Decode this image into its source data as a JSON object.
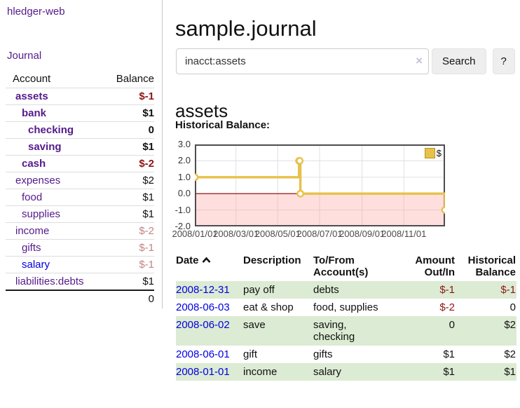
{
  "app": {
    "brand": "hledger-web"
  },
  "sidebar": {
    "journal_link": "Journal",
    "accounts": {
      "header_account": "Account",
      "header_balance": "Balance",
      "rows": [
        {
          "name": "assets",
          "depth": 1,
          "bold": true,
          "blue": false,
          "balance": "$-1",
          "balance_style": "neg-strong"
        },
        {
          "name": "bank",
          "depth": 2,
          "bold": true,
          "blue": false,
          "balance": "$1",
          "balance_style": "pos"
        },
        {
          "name": "checking",
          "depth": 3,
          "bold": true,
          "blue": false,
          "balance": "0",
          "balance_style": "pos"
        },
        {
          "name": "saving",
          "depth": 3,
          "bold": true,
          "blue": false,
          "balance": "$1",
          "balance_style": "pos"
        },
        {
          "name": "cash",
          "depth": 2,
          "bold": true,
          "blue": false,
          "balance": "$-2",
          "balance_style": "neg-strong"
        },
        {
          "name": "expenses",
          "depth": 1,
          "bold": false,
          "blue": false,
          "balance": "$2",
          "balance_style": "pos"
        },
        {
          "name": "food",
          "depth": 2,
          "bold": false,
          "blue": false,
          "balance": "$1",
          "balance_style": "pos"
        },
        {
          "name": "supplies",
          "depth": 2,
          "bold": false,
          "blue": false,
          "balance": "$1",
          "balance_style": "pos"
        },
        {
          "name": "income",
          "depth": 1,
          "bold": false,
          "blue": false,
          "balance": "$-2",
          "balance_style": "neg-muted"
        },
        {
          "name": "gifts",
          "depth": 2,
          "bold": false,
          "blue": false,
          "balance": "$-1",
          "balance_style": "neg-muted"
        },
        {
          "name": "salary",
          "depth": 2,
          "bold": false,
          "blue": true,
          "balance": "$-1",
          "balance_style": "neg-muted"
        },
        {
          "name": "liabilities:debts",
          "depth": 1,
          "bold": false,
          "blue": false,
          "balance": "$1",
          "balance_style": "pos"
        }
      ],
      "total": "0"
    }
  },
  "main": {
    "title": "sample.journal",
    "search": {
      "value": "inacct:assets",
      "clear_icon": "×",
      "search_button": "Search",
      "help_button": "?"
    },
    "heading": "assets",
    "chart_title": "Historical Balance:"
  },
  "chart_data": {
    "type": "line",
    "step": true,
    "title": "Historical Balance",
    "series": [
      {
        "name": "$",
        "color": "#e8c14a",
        "points": [
          [
            "2008-01-01",
            1
          ],
          [
            "2008-06-01",
            2
          ],
          [
            "2008-06-02",
            2
          ],
          [
            "2008-06-03",
            0
          ],
          [
            "2008-12-31",
            -1
          ]
        ]
      }
    ],
    "xlim": [
      "2008-01-01",
      "2008-12-31"
    ],
    "ylim": [
      -2,
      3
    ],
    "yticks": [
      3,
      2,
      1,
      0,
      -1,
      -2
    ],
    "ytick_labels": [
      "3.0",
      "2.0",
      "1.0",
      "0.0",
      "-1.0",
      "-2.0"
    ],
    "xticks": [
      "2008-01-01",
      "2008-03-01",
      "2008-05-01",
      "2008-07-01",
      "2008-09-01",
      "2008-11-01"
    ],
    "xtick_labels": [
      "2008/01/01",
      "2008/03/01",
      "2008/05/01",
      "2008/07/01",
      "2008/09/01",
      "2008/11/01"
    ],
    "legend": {
      "label": "$",
      "position": "top-right"
    },
    "grid": true,
    "grid_color": "#e0e0e0",
    "negative_region_color": "rgba(255,160,160,0.35)",
    "zero_line_color": "#8b0000",
    "border_color": "#4d4d4d"
  },
  "register": {
    "headers": {
      "date": "Date",
      "description": "Description",
      "accounts": "To/From Account(s)",
      "amount": "Amount Out/In",
      "balance": "Historical Balance"
    },
    "rows": [
      {
        "date": "2008-12-31",
        "description": "pay off",
        "accounts": "debts",
        "amount": "$-1",
        "amount_negative": true,
        "balance": "$-1",
        "balance_negative": true,
        "shade": true
      },
      {
        "date": "2008-06-03",
        "description": "eat & shop",
        "accounts": "food, supplies",
        "amount": "$-2",
        "amount_negative": true,
        "balance": "0",
        "balance_negative": false,
        "shade": false
      },
      {
        "date": "2008-06-02",
        "description": "save",
        "accounts": "saving, checking",
        "amount": "0",
        "amount_negative": false,
        "balance": "$2",
        "balance_negative": false,
        "shade": true
      },
      {
        "date": "2008-06-01",
        "description": "gift",
        "accounts": "gifts",
        "amount": "$1",
        "amount_negative": false,
        "balance": "$2",
        "balance_negative": false,
        "shade": false
      },
      {
        "date": "2008-01-01",
        "description": "income",
        "accounts": "salary",
        "amount": "$1",
        "amount_negative": false,
        "balance": "$1",
        "balance_negative": false,
        "shade": true
      }
    ]
  }
}
